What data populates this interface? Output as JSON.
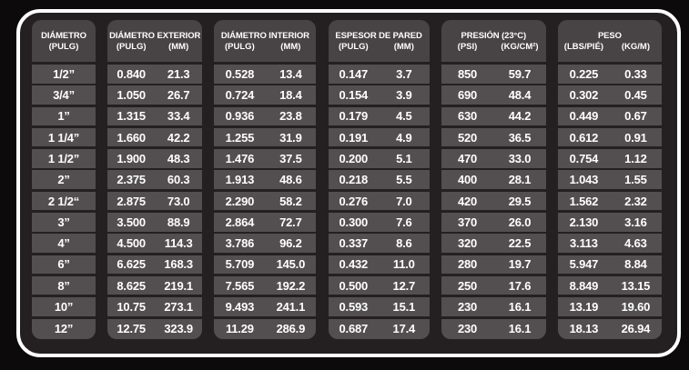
{
  "colors": {
    "page_background": "#0d0a0b",
    "frame_border": "#ffffff",
    "frame_background": "#242021",
    "header_cell_background": "#484344",
    "data_cell_background": "#534e4f",
    "text": "#ffffff"
  },
  "table": {
    "columns": [
      {
        "key": "diametro",
        "title": "DIÁMETRO",
        "subs": [
          "(PULG)"
        ]
      },
      {
        "key": "diametro_exterior",
        "title": "DIÁMETRO EXTERIOR",
        "subs": [
          "(PULG)",
          "(MM)"
        ]
      },
      {
        "key": "diametro_interior",
        "title": "DIÁMETRO INTERIOR",
        "subs": [
          "(PULG)",
          "(MM)"
        ]
      },
      {
        "key": "espesor_de_pared",
        "title": "ESPESOR DE PARED",
        "subs": [
          "(PULG)",
          "(MM)"
        ]
      },
      {
        "key": "presion",
        "title": "PRESIÓN (23°C)",
        "subs": [
          "(PSI)",
          "(KG/CM²)"
        ]
      },
      {
        "key": "peso",
        "title": "PESO",
        "subs": [
          "(LBS/PIÉ)",
          "(KG/M)"
        ]
      }
    ],
    "rows": [
      {
        "diametro": "1/2”",
        "diametro_exterior": [
          "0.840",
          "21.3"
        ],
        "diametro_interior": [
          "0.528",
          "13.4"
        ],
        "espesor_de_pared": [
          "0.147",
          "3.7"
        ],
        "presion": [
          "850",
          "59.7"
        ],
        "peso": [
          "0.225",
          "0.33"
        ]
      },
      {
        "diametro": "3/4”",
        "diametro_exterior": [
          "1.050",
          "26.7"
        ],
        "diametro_interior": [
          "0.724",
          "18.4"
        ],
        "espesor_de_pared": [
          "0.154",
          "3.9"
        ],
        "presion": [
          "690",
          "48.4"
        ],
        "peso": [
          "0.302",
          "0.45"
        ]
      },
      {
        "diametro": "1”",
        "diametro_exterior": [
          "1.315",
          "33.4"
        ],
        "diametro_interior": [
          "0.936",
          "23.8"
        ],
        "espesor_de_pared": [
          "0.179",
          "4.5"
        ],
        "presion": [
          "630",
          "44.2"
        ],
        "peso": [
          "0.449",
          "0.67"
        ]
      },
      {
        "diametro": "1 1/4”",
        "diametro_exterior": [
          "1.660",
          "42.2"
        ],
        "diametro_interior": [
          "1.255",
          "31.9"
        ],
        "espesor_de_pared": [
          "0.191",
          "4.9"
        ],
        "presion": [
          "520",
          "36.5"
        ],
        "peso": [
          "0.612",
          "0.91"
        ]
      },
      {
        "diametro": "1 1/2”",
        "diametro_exterior": [
          "1.900",
          "48.3"
        ],
        "diametro_interior": [
          "1.476",
          "37.5"
        ],
        "espesor_de_pared": [
          "0.200",
          "5.1"
        ],
        "presion": [
          "470",
          "33.0"
        ],
        "peso": [
          "0.754",
          "1.12"
        ]
      },
      {
        "diametro": "2”",
        "diametro_exterior": [
          "2.375",
          "60.3"
        ],
        "diametro_interior": [
          "1.913",
          "48.6"
        ],
        "espesor_de_pared": [
          "0.218",
          "5.5"
        ],
        "presion": [
          "400",
          "28.1"
        ],
        "peso": [
          "1.043",
          "1.55"
        ]
      },
      {
        "diametro": "2 1/2“",
        "diametro_exterior": [
          "2.875",
          "73.0"
        ],
        "diametro_interior": [
          "2.290",
          "58.2"
        ],
        "espesor_de_pared": [
          "0.276",
          "7.0"
        ],
        "presion": [
          "420",
          "29.5"
        ],
        "peso": [
          "1.562",
          "2.32"
        ]
      },
      {
        "diametro": "3”",
        "diametro_exterior": [
          "3.500",
          "88.9"
        ],
        "diametro_interior": [
          "2.864",
          "72.7"
        ],
        "espesor_de_pared": [
          "0.300",
          "7.6"
        ],
        "presion": [
          "370",
          "26.0"
        ],
        "peso": [
          "2.130",
          "3.16"
        ]
      },
      {
        "diametro": "4”",
        "diametro_exterior": [
          "4.500",
          "114.3"
        ],
        "diametro_interior": [
          "3.786",
          "96.2"
        ],
        "espesor_de_pared": [
          "0.337",
          "8.6"
        ],
        "presion": [
          "320",
          "22.5"
        ],
        "peso": [
          "3.113",
          "4.63"
        ]
      },
      {
        "diametro": "6”",
        "diametro_exterior": [
          "6.625",
          "168.3"
        ],
        "diametro_interior": [
          "5.709",
          "145.0"
        ],
        "espesor_de_pared": [
          "0.432",
          "11.0"
        ],
        "presion": [
          "280",
          "19.7"
        ],
        "peso": [
          "5.947",
          "8.84"
        ]
      },
      {
        "diametro": "8”",
        "diametro_exterior": [
          "8.625",
          "219.1"
        ],
        "diametro_interior": [
          "7.565",
          "192.2"
        ],
        "espesor_de_pared": [
          "0.500",
          "12.7"
        ],
        "presion": [
          "250",
          "17.6"
        ],
        "peso": [
          "8.849",
          "13.15"
        ]
      },
      {
        "diametro": "10”",
        "diametro_exterior": [
          "10.75",
          "273.1"
        ],
        "diametro_interior": [
          "9.493",
          "241.1"
        ],
        "espesor_de_pared": [
          "0.593",
          "15.1"
        ],
        "presion": [
          "230",
          "16.1"
        ],
        "peso": [
          "13.19",
          "19.60"
        ]
      },
      {
        "diametro": "12”",
        "diametro_exterior": [
          "12.75",
          "323.9"
        ],
        "diametro_interior": [
          "11.29",
          "286.9"
        ],
        "espesor_de_pared": [
          "0.687",
          "17.4"
        ],
        "presion": [
          "230",
          "16.1"
        ],
        "peso": [
          "18.13",
          "26.94"
        ]
      }
    ]
  }
}
